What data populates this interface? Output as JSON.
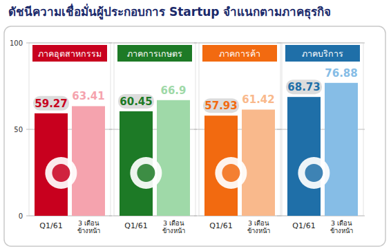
{
  "title": "ดัชนีความเชื่อมั่นผู้ประกอบการ Startup จำแนกตามภาคธุรกิจ",
  "chart_data": [
    {
      "type": "bar",
      "title": "ภาคอุตสาหกรรม",
      "categories": [
        "Q1/61",
        "3 เดือน\nข้างหน้า"
      ],
      "values": [
        59.27,
        63.41
      ],
      "colors": [
        "#c8001e",
        "#f5a3ae"
      ],
      "ylim": [
        0,
        100
      ],
      "yticks": [
        0,
        50,
        100
      ],
      "grid": true,
      "data_labels": true,
      "tick_labels": true
    },
    {
      "type": "bar",
      "title": "ภาคการเกษตร",
      "categories": [
        "Q1/61",
        "3 เดือน\nข้างหน้า"
      ],
      "values": [
        60.45,
        66.9
      ],
      "colors": [
        "#1d7a26",
        "#9fd9a8"
      ],
      "ylim": [
        0,
        100
      ],
      "yticks": [
        0,
        50,
        100
      ],
      "grid": true,
      "data_labels": true,
      "tick_labels": "x"
    },
    {
      "type": "bar",
      "title": "ภาคการค้า",
      "categories": [
        "Q1/61",
        "3 เดือน\nข้างหน้า"
      ],
      "values": [
        57.93,
        61.42
      ],
      "colors": [
        "#f26a10",
        "#f9b98c"
      ],
      "ylim": [
        0,
        100
      ],
      "yticks": [
        0,
        50,
        100
      ],
      "grid": true,
      "data_labels": true,
      "tick_labels": "x"
    },
    {
      "type": "bar",
      "title": "ภาคบริการ",
      "categories": [
        "Q1/61",
        "3 เดือน\nข้างหน้า"
      ],
      "values": [
        68.73,
        76.88
      ],
      "colors": [
        "#1f6fa8",
        "#86bde6"
      ],
      "ylim": [
        0,
        100
      ],
      "yticks": [
        0,
        50,
        100
      ],
      "grid": true,
      "data_labels": true,
      "tick_labels": "x"
    }
  ]
}
